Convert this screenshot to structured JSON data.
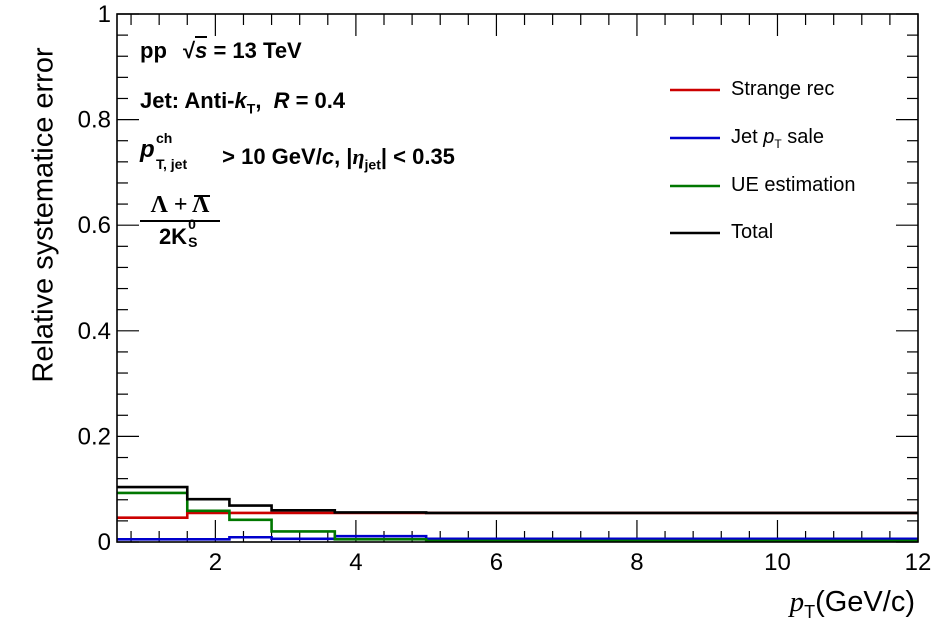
{
  "chart_data": {
    "type": "line",
    "step": true,
    "ylabel": "Relative systematice error",
    "xlabel": "p_T (GeV/c)",
    "xlim": [
      0.6,
      12
    ],
    "ylim": [
      0,
      1
    ],
    "x_ticks": [
      "2",
      "4",
      "6",
      "8",
      "10",
      "12"
    ],
    "y_ticks": [
      "0",
      "0.2",
      "0.4",
      "0.6",
      "0.8",
      "1"
    ],
    "bin_edges": [
      0.6,
      1.6,
      2.2,
      2.8,
      3.7,
      5.0,
      12.0
    ],
    "series": [
      {
        "name": "Strange rec",
        "color": "#cc0000",
        "values": [
          0.046,
          0.055,
          0.055,
          0.055,
          0.055,
          0.055
        ]
      },
      {
        "name": "Jet p_T sale",
        "color": "#0000cc",
        "values": [
          0.005,
          0.005,
          0.009,
          0.006,
          0.011,
          0.006
        ]
      },
      {
        "name": "UE estimation",
        "color": "#007700",
        "values": [
          0.093,
          0.059,
          0.042,
          0.02,
          0.005,
          0.002
        ]
      },
      {
        "name": "Total",
        "color": "#000000",
        "values": [
          0.104,
          0.081,
          0.069,
          0.06,
          0.056,
          0.055
        ]
      }
    ],
    "legend_position": "top-right",
    "annotations": {
      "line1_prefix": "pp",
      "sqrt_s": "s",
      "energy": "= 13 TeV",
      "jet_prefix": "Jet: Anti-",
      "k": "k",
      "T": "T",
      "radius_label": "R",
      "radius_value": "= 0.4",
      "pt_sym": "p",
      "pt_sup": "ch",
      "pt_sub": "T, jet",
      "pt_cut": "> 10 GeV/",
      "c": "c",
      "eta_cut_prefix": ", |",
      "eta": "η",
      "eta_sub": "jet",
      "eta_cut": "| < 0.35",
      "ratio_num": "Λ + Λ",
      "ratio_den_prefix": "2K",
      "ratio_den_sup": "0",
      "ratio_den_sub": "S"
    }
  }
}
